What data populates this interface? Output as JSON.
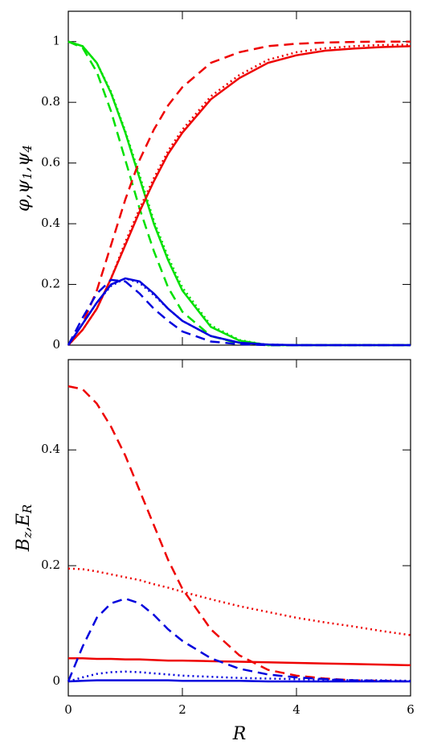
{
  "chart_data": [
    {
      "type": "line",
      "ylabel": [
        {
          "text": "φ,ψ",
          "sub": "1"
        },
        {
          "text": ",ψ",
          "sub": "4"
        }
      ],
      "x": [
        0,
        0.25,
        0.5,
        0.75,
        1,
        1.25,
        1.5,
        1.75,
        2,
        2.5,
        3,
        3.5,
        4,
        4.5,
        5,
        5.5,
        6
      ],
      "xlim": [
        0,
        6
      ],
      "xticks": [
        0,
        2,
        4,
        6
      ],
      "xticklabels": false,
      "ylim": [
        0,
        1.1
      ],
      "yticks": [
        0,
        0.2,
        0.4,
        0.6,
        0.8,
        1
      ],
      "series": [
        {
          "color": "#00e000",
          "dash": "solid",
          "values": [
            1,
            0.985,
            0.93,
            0.83,
            0.7,
            0.55,
            0.4,
            0.28,
            0.18,
            0.06,
            0.015,
            0,
            0,
            0,
            0,
            0,
            0
          ]
        },
        {
          "color": "#00e000",
          "dash": "dotted",
          "values": [
            1,
            0.985,
            0.93,
            0.835,
            0.705,
            0.56,
            0.41,
            0.29,
            0.19,
            0.065,
            0.017,
            0,
            0,
            0,
            0,
            0,
            0
          ]
        },
        {
          "color": "#00e000",
          "dash": "dashed",
          "values": [
            1,
            0.98,
            0.9,
            0.77,
            0.61,
            0.45,
            0.31,
            0.19,
            0.11,
            0.03,
            0.005,
            0,
            0,
            0,
            0,
            0,
            0
          ]
        },
        {
          "color": "#ee0000",
          "dash": "solid",
          "values": [
            0,
            0.05,
            0.12,
            0.22,
            0.33,
            0.44,
            0.54,
            0.63,
            0.7,
            0.81,
            0.88,
            0.93,
            0.955,
            0.97,
            0.977,
            0.982,
            0.985
          ]
        },
        {
          "color": "#ee0000",
          "dash": "dotted",
          "values": [
            0,
            0.05,
            0.12,
            0.22,
            0.34,
            0.45,
            0.55,
            0.64,
            0.71,
            0.82,
            0.89,
            0.94,
            0.965,
            0.978,
            0.985,
            0.989,
            0.99
          ]
        },
        {
          "color": "#ee0000",
          "dash": "dashed",
          "values": [
            0,
            0.07,
            0.18,
            0.33,
            0.48,
            0.61,
            0.71,
            0.79,
            0.85,
            0.93,
            0.965,
            0.985,
            0.993,
            0.997,
            0.999,
            1,
            1
          ]
        },
        {
          "color": "#0000dd",
          "dash": "solid",
          "values": [
            0,
            0.07,
            0.14,
            0.2,
            0.22,
            0.21,
            0.17,
            0.12,
            0.08,
            0.03,
            0.008,
            0.002,
            0,
            0,
            0,
            0,
            0
          ]
        },
        {
          "color": "#0000dd",
          "dash": "dotted",
          "values": [
            0,
            0.07,
            0.14,
            0.195,
            0.22,
            0.205,
            0.165,
            0.12,
            0.08,
            0.03,
            0.008,
            0.002,
            0,
            0,
            0,
            0,
            0
          ]
        },
        {
          "color": "#0000dd",
          "dash": "dashed",
          "values": [
            0,
            0.09,
            0.17,
            0.215,
            0.21,
            0.17,
            0.12,
            0.08,
            0.045,
            0.012,
            0.003,
            0,
            0,
            0,
            0,
            0,
            0
          ]
        }
      ]
    },
    {
      "type": "line",
      "xlabel": "R",
      "ylabel": [
        {
          "text": "B",
          "sub": "z"
        },
        {
          "text": ",E",
          "sub": "R"
        }
      ],
      "x": [
        0,
        0.25,
        0.5,
        0.75,
        1,
        1.25,
        1.5,
        1.75,
        2,
        2.5,
        3,
        3.5,
        4,
        4.5,
        5,
        5.5,
        6
      ],
      "xlim": [
        0,
        6
      ],
      "xticks": [
        0,
        2,
        4,
        6
      ],
      "xticklabels": true,
      "ylim": [
        -0.025,
        0.556
      ],
      "yticks": [
        0,
        0.2,
        0.4
      ],
      "series": [
        {
          "color": "#ee0000",
          "dash": "dashed",
          "values": [
            0.51,
            0.505,
            0.48,
            0.44,
            0.39,
            0.33,
            0.27,
            0.21,
            0.16,
            0.09,
            0.045,
            0.02,
            0.01,
            0.005,
            0.002,
            0.001,
            0
          ]
        },
        {
          "color": "#ee0000",
          "dash": "dotted",
          "values": [
            0.195,
            0.194,
            0.19,
            0.185,
            0.18,
            0.175,
            0.168,
            0.162,
            0.155,
            0.142,
            0.13,
            0.12,
            0.11,
            0.102,
            0.095,
            0.087,
            0.08
          ]
        },
        {
          "color": "#ee0000",
          "dash": "solid",
          "values": [
            0.04,
            0.04,
            0.039,
            0.039,
            0.038,
            0.038,
            0.037,
            0.036,
            0.036,
            0.035,
            0.034,
            0.033,
            0.032,
            0.031,
            0.03,
            0.029,
            0.028
          ]
        },
        {
          "color": "#0000dd",
          "dash": "dashed",
          "values": [
            0,
            0.06,
            0.11,
            0.135,
            0.143,
            0.135,
            0.115,
            0.09,
            0.07,
            0.04,
            0.022,
            0.012,
            0.007,
            0.004,
            0.002,
            0.001,
            0
          ]
        },
        {
          "color": "#0000dd",
          "dash": "dotted",
          "values": [
            0,
            0.007,
            0.013,
            0.016,
            0.017,
            0.016,
            0.014,
            0.012,
            0.01,
            0.008,
            0.006,
            0.005,
            0.004,
            0.003,
            0.002,
            0.002,
            0.001
          ]
        },
        {
          "color": "#0000dd",
          "dash": "solid",
          "values": [
            0,
            0.001,
            0.002,
            0.002,
            0.002,
            0.002,
            0.002,
            0.002,
            0.001,
            0.001,
            0.001,
            0,
            0,
            0,
            0,
            0,
            0
          ]
        }
      ]
    }
  ]
}
